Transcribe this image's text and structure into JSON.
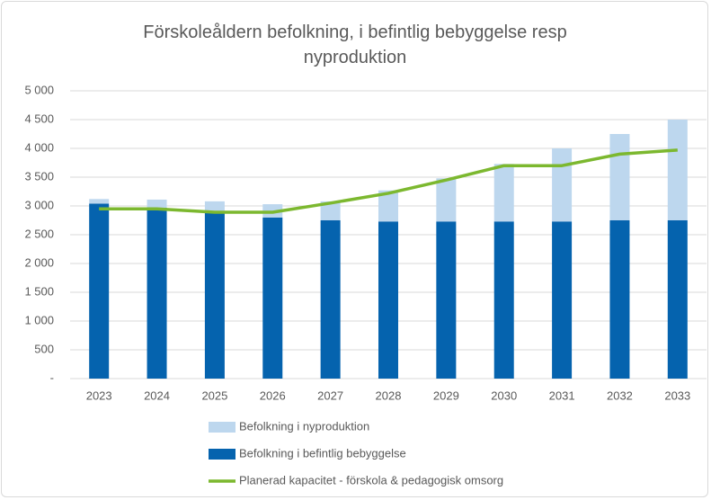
{
  "chart_data": {
    "type": "bar",
    "title": "Förskoleåldern befolkning, i befintlig bebyggelse resp nyproduktion",
    "categories": [
      "2023",
      "2024",
      "2025",
      "2026",
      "2027",
      "2028",
      "2029",
      "2030",
      "2031",
      "2032",
      "2033"
    ],
    "stacked": true,
    "series": [
      {
        "name": "Befolkning i nyproduktion",
        "type": "bar",
        "color": "#bdd7ee",
        "values": [
          80,
          140,
          190,
          230,
          330,
          540,
          750,
          1000,
          1270,
          1500,
          1750
        ]
      },
      {
        "name": "Befolkning i befintlig bebyggelse",
        "type": "bar",
        "color": "#0563ae",
        "values": [
          3040,
          2970,
          2890,
          2800,
          2750,
          2730,
          2730,
          2730,
          2730,
          2750,
          2750
        ]
      },
      {
        "name": "Planerad kapacitet - förskola & pedagogisk omsorg",
        "type": "line",
        "color": "#7cb82f",
        "values": [
          2950,
          2950,
          2890,
          2890,
          3050,
          3220,
          3450,
          3700,
          3700,
          3900,
          3970
        ]
      }
    ],
    "ylim": [
      0,
      5000
    ],
    "yticks": [
      {
        "value": 0,
        "label": "-"
      },
      500,
      {
        "value": 1000,
        "label": "1 000"
      },
      {
        "value": 1500,
        "label": "1 500"
      },
      {
        "value": 2000,
        "label": "2 000"
      },
      {
        "value": 2500,
        "label": "2 500"
      },
      {
        "value": 3000,
        "label": "3 000"
      },
      {
        "value": 3500,
        "label": "3 500"
      },
      {
        "value": 4000,
        "label": "4 000"
      },
      {
        "value": 4500,
        "label": "4 500"
      },
      {
        "value": 5000,
        "label": "5 000"
      }
    ],
    "legend": "bottom"
  }
}
